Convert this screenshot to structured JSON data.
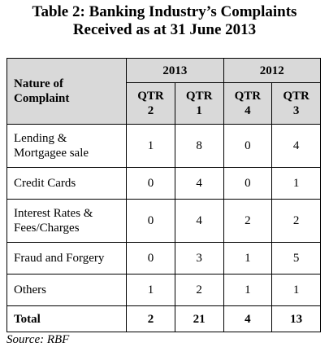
{
  "title": [
    "Table 2: Banking Industry’s Complaints",
    "Received as at 31 June 2013"
  ],
  "table": {
    "column_header": "Nature of Complaint",
    "year_headers": [
      "2013",
      "2012"
    ],
    "quarters": [
      "QTR 2",
      "QTR 1",
      "QTR 4",
      "QTR 3"
    ],
    "rows": [
      [
        "Lending & Mortgagee sale",
        1,
        8,
        0,
        4
      ],
      [
        "Credit Cards",
        0,
        4,
        0,
        1
      ],
      [
        "Interest Rates & Fees/Charges",
        0,
        4,
        2,
        2
      ],
      [
        "Fraud and Forgery",
        0,
        3,
        1,
        5
      ],
      [
        "Others",
        1,
        2,
        1,
        1
      ]
    ],
    "total": [
      "Total",
      2,
      21,
      4,
      13
    ]
  },
  "source": "Source: RBF"
}
